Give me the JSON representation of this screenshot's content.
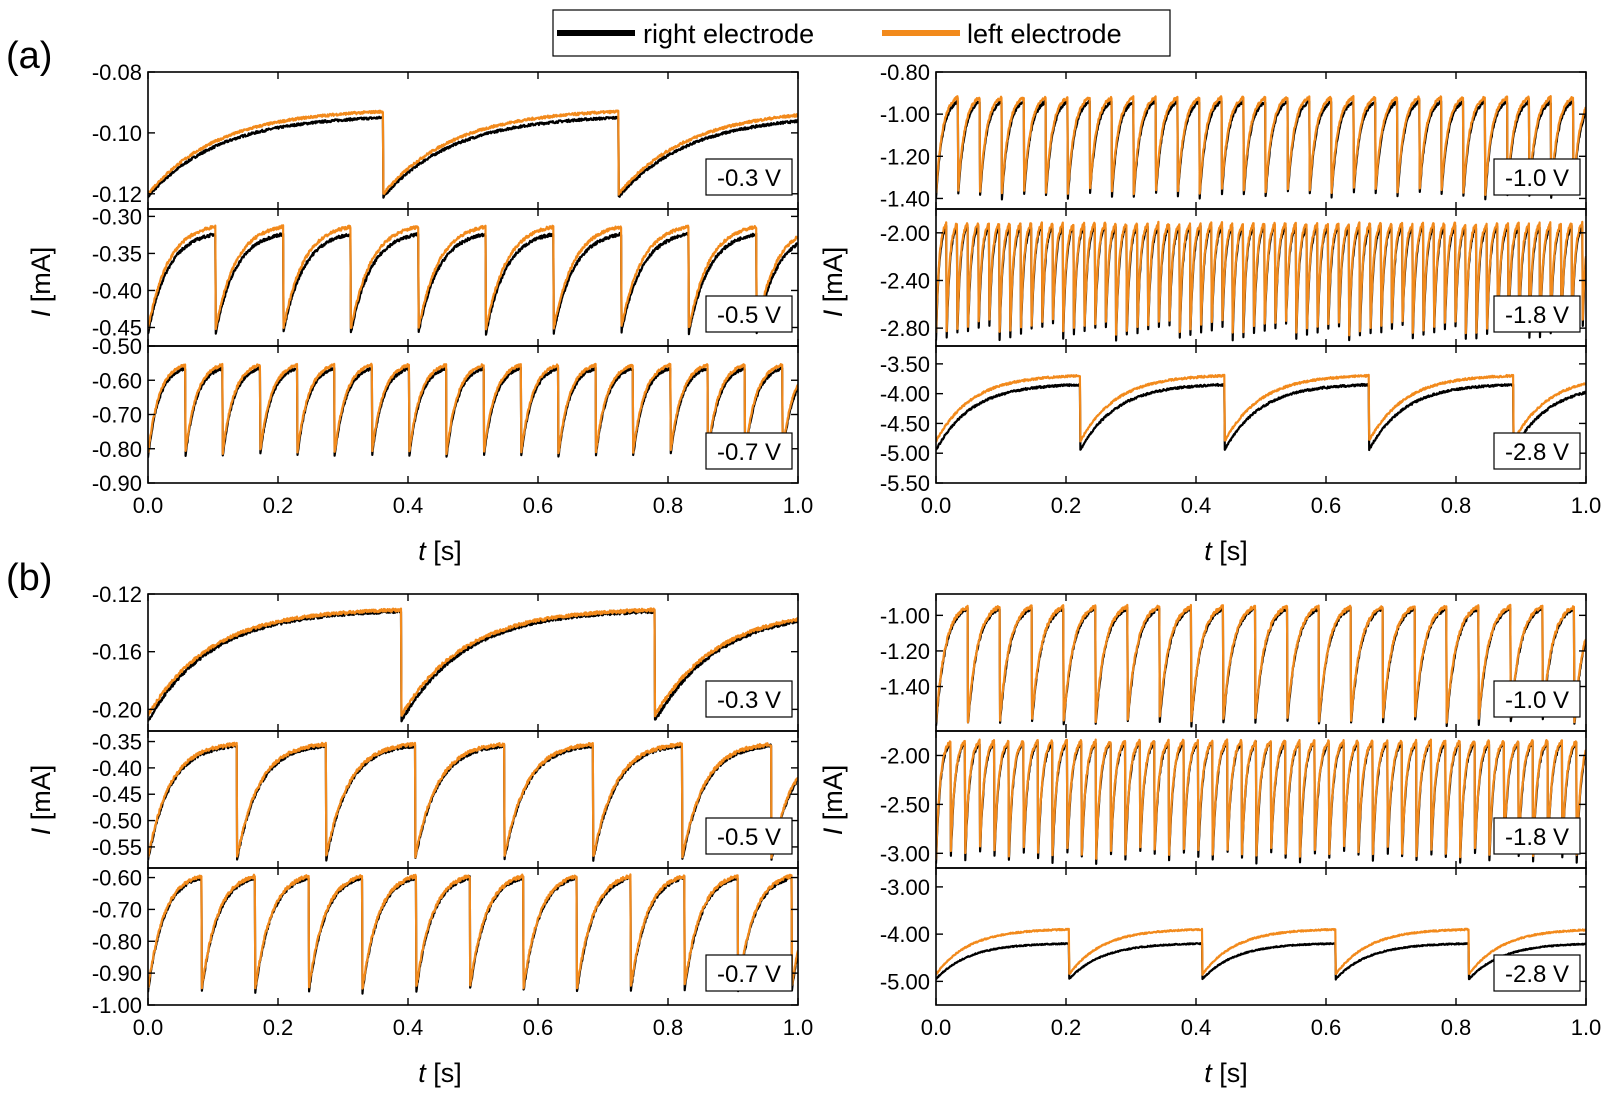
{
  "legend": {
    "entries": [
      {
        "label": "right electrode",
        "color": "#000000"
      },
      {
        "label": "left electrode",
        "color": "#f28a1c"
      }
    ]
  },
  "panels": [
    {
      "label": "(a)",
      "xlabel_var": "t",
      "xlabel_unit": " [s]",
      "ylabel_var": "I",
      "ylabel_unit": " [mA]"
    },
    {
      "label": "(b)",
      "xlabel_var": "t",
      "xlabel_unit": " [s]",
      "ylabel_var": "I",
      "ylabel_unit": " [mA]"
    }
  ],
  "chart_data": [
    {
      "type": "line",
      "panel": "a",
      "column": "left",
      "voltage": "-0.3 V",
      "xlim": [
        0,
        1
      ],
      "ylim": [
        -0.125,
        -0.08
      ],
      "yticks": [
        "-0.08",
        "-0.10",
        "-0.12"
      ],
      "ytick_values": [
        -0.08,
        -0.1,
        -0.12
      ],
      "series": [
        {
          "name": "right electrode",
          "period": 0.362,
          "phase": 0,
          "min": -0.121,
          "max": -0.095,
          "tau": 0.3
        },
        {
          "name": "left electrode",
          "period": 0.362,
          "phase": 0,
          "min": -0.12,
          "max": -0.093,
          "tau": 0.3
        }
      ]
    },
    {
      "type": "line",
      "panel": "a",
      "column": "left",
      "voltage": "-0.5 V",
      "xlim": [
        0,
        1
      ],
      "ylim": [
        -0.475,
        -0.29
      ],
      "yticks": [
        "-0.30",
        "-0.35",
        "-0.40",
        "-0.45"
      ],
      "ytick_values": [
        -0.3,
        -0.35,
        -0.4,
        -0.45
      ],
      "series": [
        {
          "name": "right electrode",
          "period": 0.104,
          "phase": 0,
          "min": -0.458,
          "max": -0.324,
          "tau": 0.3
        },
        {
          "name": "left electrode",
          "period": 0.104,
          "phase": 0,
          "min": -0.452,
          "max": -0.314,
          "tau": 0.3
        }
      ]
    },
    {
      "type": "line",
      "panel": "a",
      "column": "left",
      "voltage": "-0.7 V",
      "xlim": [
        0,
        1
      ],
      "ylim": [
        -0.9,
        -0.5
      ],
      "yticks": [
        "-0.50",
        "-0.60",
        "-0.70",
        "-0.80",
        "-0.90"
      ],
      "ytick_values": [
        -0.5,
        -0.6,
        -0.7,
        -0.8,
        -0.9
      ],
      "series": [
        {
          "name": "right electrode",
          "period": 0.0574,
          "phase": 0,
          "min": -0.825,
          "max": -0.565,
          "tau": 0.3
        },
        {
          "name": "left electrode",
          "period": 0.0574,
          "phase": 0,
          "min": -0.815,
          "max": -0.555,
          "tau": 0.3
        }
      ]
    },
    {
      "type": "line",
      "panel": "a",
      "column": "right",
      "voltage": "-1.0 V",
      "xlim": [
        0,
        1
      ],
      "ylim": [
        -1.45,
        -0.8
      ],
      "yticks": [
        "-0.80",
        "-1.00",
        "-1.20",
        "-1.40"
      ],
      "ytick_values": [
        -0.8,
        -1.0,
        -1.2,
        -1.4
      ],
      "series": [
        {
          "name": "right electrode",
          "period": 0.0338,
          "phase": 0,
          "min": -1.4,
          "max": -0.94,
          "tau": 0.3
        },
        {
          "name": "left electrode",
          "period": 0.0338,
          "phase": 0,
          "min": -1.38,
          "max": -0.92,
          "tau": 0.3
        }
      ]
    },
    {
      "type": "line",
      "panel": "a",
      "column": "right",
      "voltage": "-1.8 V",
      "xlim": [
        0,
        1
      ],
      "ylim": [
        -2.95,
        -1.8
      ],
      "yticks": [
        "-2.00",
        "-2.40",
        "-2.80"
      ],
      "ytick_values": [
        -2.0,
        -2.4,
        -2.8
      ],
      "series": [
        {
          "name": "right electrode",
          "period": 0.0163,
          "phase": 0,
          "min": -2.9,
          "max": -1.95,
          "tau": 0.3
        },
        {
          "name": "left electrode",
          "period": 0.0163,
          "phase": 0,
          "min": -2.85,
          "max": -1.92,
          "tau": 0.3
        }
      ]
    },
    {
      "type": "line",
      "panel": "a",
      "column": "right",
      "voltage": "-2.8 V",
      "xlim": [
        0,
        1
      ],
      "ylim": [
        -5.5,
        -3.2
      ],
      "yticks": [
        "-3.50",
        "-4.00",
        "-4.50",
        "-5.00",
        "-5.50"
      ],
      "ytick_values": [
        -3.5,
        -4.0,
        -4.5,
        -5.0,
        -5.5
      ],
      "series": [
        {
          "name": "right electrode",
          "period": 0.222,
          "phase": 0,
          "min": -4.95,
          "max": -3.85,
          "tau": 0.25
        },
        {
          "name": "left electrode",
          "period": 0.222,
          "phase": 0,
          "min": -4.8,
          "max": -3.7,
          "tau": 0.25
        }
      ]
    },
    {
      "type": "line",
      "panel": "b",
      "column": "left",
      "voltage": "-0.3 V",
      "xlim": [
        0,
        1
      ],
      "ylim": [
        -0.215,
        -0.12
      ],
      "yticks": [
        "-0.12",
        "-0.16",
        "-0.20"
      ],
      "ytick_values": [
        -0.12,
        -0.16,
        -0.2
      ],
      "series": [
        {
          "name": "right electrode",
          "period": 0.39,
          "phase": 0,
          "min": -0.208,
          "max": -0.132,
          "tau": 0.25
        },
        {
          "name": "left electrode",
          "period": 0.39,
          "phase": 0,
          "min": -0.204,
          "max": -0.131,
          "tau": 0.25
        }
      ]
    },
    {
      "type": "line",
      "panel": "b",
      "column": "left",
      "voltage": "-0.5 V",
      "xlim": [
        0,
        1
      ],
      "ylim": [
        -0.59,
        -0.33
      ],
      "yticks": [
        "-0.35",
        "-0.40",
        "-0.45",
        "-0.50",
        "-0.55"
      ],
      "ytick_values": [
        -0.35,
        -0.4,
        -0.45,
        -0.5,
        -0.55
      ],
      "series": [
        {
          "name": "right electrode",
          "period": 0.137,
          "phase": 0,
          "min": -0.575,
          "max": -0.358,
          "tau": 0.25
        },
        {
          "name": "left electrode",
          "period": 0.137,
          "phase": 0,
          "min": -0.57,
          "max": -0.355,
          "tau": 0.25
        }
      ]
    },
    {
      "type": "line",
      "panel": "b",
      "column": "left",
      "voltage": "-0.7 V",
      "xlim": [
        0,
        1
      ],
      "ylim": [
        -1.0,
        -0.57
      ],
      "yticks": [
        "-0.60",
        "-0.70",
        "-0.80",
        "-0.90",
        "-1.00"
      ],
      "ytick_values": [
        -0.6,
        -0.7,
        -0.8,
        -0.9,
        -1.0
      ],
      "series": [
        {
          "name": "right electrode",
          "period": 0.0825,
          "phase": 0,
          "min": -0.96,
          "max": -0.6,
          "tau": 0.3
        },
        {
          "name": "left electrode",
          "period": 0.0825,
          "phase": 0,
          "min": -0.95,
          "max": -0.595,
          "tau": 0.3
        }
      ]
    },
    {
      "type": "line",
      "panel": "b",
      "column": "right",
      "voltage": "-1.0 V",
      "xlim": [
        0,
        1
      ],
      "ylim": [
        -1.65,
        -0.88
      ],
      "yticks": [
        "-1.00",
        "-1.20",
        "-1.40"
      ],
      "ytick_values": [
        -1.0,
        -1.2,
        -1.4
      ],
      "series": [
        {
          "name": "right electrode",
          "period": 0.0491,
          "phase": 0,
          "min": -1.62,
          "max": -0.96,
          "tau": 0.3
        },
        {
          "name": "left electrode",
          "period": 0.0491,
          "phase": 0,
          "min": -1.6,
          "max": -0.95,
          "tau": 0.3
        }
      ]
    },
    {
      "type": "line",
      "panel": "b",
      "column": "right",
      "voltage": "-1.8 V",
      "xlim": [
        0,
        1
      ],
      "ylim": [
        -3.15,
        -1.75
      ],
      "yticks": [
        "-2.00",
        "-2.50",
        "-3.00"
      ],
      "ytick_values": [
        -2.0,
        -2.5,
        -3.0
      ],
      "series": [
        {
          "name": "right electrode",
          "period": 0.0224,
          "phase": 0,
          "min": -3.1,
          "max": -1.87,
          "tau": 0.3
        },
        {
          "name": "left electrode",
          "period": 0.0224,
          "phase": 0,
          "min": -3.05,
          "max": -1.85,
          "tau": 0.3
        }
      ]
    },
    {
      "type": "line",
      "panel": "b",
      "column": "right",
      "voltage": "-2.8 V",
      "xlim": [
        0,
        1
      ],
      "ylim": [
        -5.5,
        -2.6
      ],
      "yticks": [
        "-3.00",
        "-4.00",
        "-5.00"
      ],
      "ytick_values": [
        -3.0,
        -4.0,
        -5.0
      ],
      "series": [
        {
          "name": "right electrode",
          "period": 0.205,
          "phase": 0,
          "min": -4.95,
          "max": -4.2,
          "tau": 0.25
        },
        {
          "name": "left electrode",
          "period": 0.205,
          "phase": 0,
          "min": -4.85,
          "max": -3.9,
          "tau": 0.25
        }
      ]
    }
  ],
  "xticks": [
    "0.0",
    "0.2",
    "0.4",
    "0.6",
    "0.8",
    "1.0"
  ],
  "xtick_values": [
    0,
    0.2,
    0.4,
    0.6,
    0.8,
    1.0
  ]
}
